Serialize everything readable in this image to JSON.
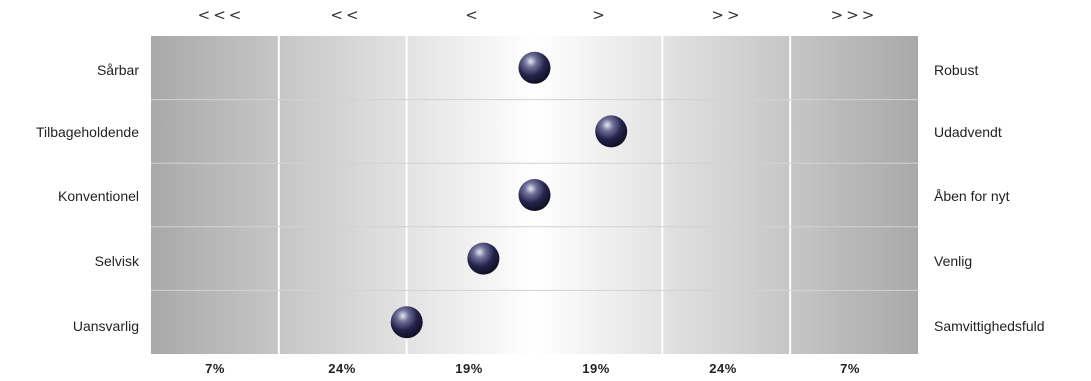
{
  "chart_data": {
    "type": "scatter",
    "scale": {
      "min": 0,
      "max": 6,
      "segments": 6
    },
    "column_headers": [
      "<<<",
      "<<",
      "<",
      ">",
      ">>",
      ">>>"
    ],
    "column_percentages": [
      "7%",
      "24%",
      "19%",
      "19%",
      "24%",
      "7%"
    ],
    "rows": [
      {
        "left": "Sårbar",
        "right": "Robust",
        "value": 3.0
      },
      {
        "left": "Tilbageholdende",
        "right": "Udadvendt",
        "value": 3.6
      },
      {
        "left": "Konventionel",
        "right": "Åben for nyt",
        "value": 3.0
      },
      {
        "left": "Selvisk",
        "right": "Venlig",
        "value": 2.6
      },
      {
        "left": "Uansvarlig",
        "right": "Samvittighedsfuld",
        "value": 2.0
      }
    ],
    "marker_color": "#23234a",
    "band_dark": "#a9a9a9",
    "band_light": "#ffffff"
  }
}
